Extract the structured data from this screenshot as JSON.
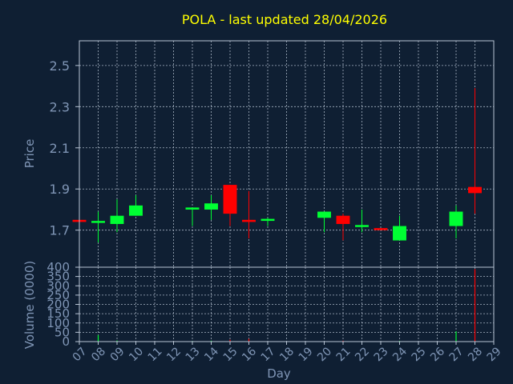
{
  "title": "POLA - last updated 28/04/2026",
  "price_axis_label": "Price",
  "volume_axis_label": "Volume (0000)",
  "x_axis_label": "Day",
  "colors": {
    "background": "#0f1f33",
    "up": "#00ff33",
    "down": "#ff0000",
    "text": "#7f95b5",
    "title": "#ffff00",
    "grid": "#b8c4d4"
  },
  "chart_data": [
    {
      "type": "candlestick",
      "title": "POLA - last updated 28/04/2026",
      "ylabel": "Price",
      "xlabel": "Day",
      "ylim": [
        1.52,
        2.62
      ],
      "yticks": [
        "1.7",
        "1.9",
        "2.1",
        "2.3",
        "2.5"
      ],
      "xticks": [
        "07",
        "08",
        "09",
        "10",
        "11",
        "12",
        "13",
        "14",
        "15",
        "16",
        "17",
        "18",
        "19",
        "20",
        "21",
        "22",
        "23",
        "24",
        "25",
        "26",
        "27",
        "28",
        "29"
      ],
      "grid": true,
      "candles": [
        {
          "day": "07",
          "open": 1.75,
          "high": 1.75,
          "low": 1.74,
          "close": 1.74
        },
        {
          "day": "08",
          "open": 1.74,
          "high": 1.79,
          "low": 1.64,
          "close": 1.74
        },
        {
          "day": "09",
          "open": 1.73,
          "high": 1.85,
          "low": 1.69,
          "close": 1.77
        },
        {
          "day": "10",
          "open": 1.77,
          "high": 1.87,
          "low": 1.77,
          "close": 1.82
        },
        {
          "day": "13",
          "open": 1.8,
          "high": 1.81,
          "low": 1.72,
          "close": 1.81
        },
        {
          "day": "14",
          "open": 1.8,
          "high": 1.87,
          "low": 1.75,
          "close": 1.83
        },
        {
          "day": "15",
          "open": 1.92,
          "high": 1.92,
          "low": 1.72,
          "close": 1.78
        },
        {
          "day": "16",
          "open": 1.75,
          "high": 1.89,
          "low": 1.66,
          "close": 1.74
        },
        {
          "day": "17",
          "open": 1.75,
          "high": 1.76,
          "low": 1.72,
          "close": 1.75
        },
        {
          "day": "20",
          "open": 1.76,
          "high": 1.79,
          "low": 1.69,
          "close": 1.79
        },
        {
          "day": "21",
          "open": 1.77,
          "high": 1.78,
          "low": 1.65,
          "close": 1.73
        },
        {
          "day": "22",
          "open": 1.72,
          "high": 1.8,
          "low": 1.69,
          "close": 1.72
        },
        {
          "day": "23",
          "open": 1.71,
          "high": 1.71,
          "low": 1.7,
          "close": 1.7
        },
        {
          "day": "24",
          "open": 1.65,
          "high": 1.77,
          "low": 1.65,
          "close": 1.72
        },
        {
          "day": "27",
          "open": 1.72,
          "high": 1.82,
          "low": 1.66,
          "close": 1.79
        },
        {
          "day": "28",
          "open": 1.91,
          "high": 2.39,
          "low": 1.78,
          "close": 1.88
        }
      ]
    },
    {
      "type": "bar",
      "ylabel": "Volume (0000)",
      "xlabel": "Day",
      "ylim": [
        0,
        400
      ],
      "yticks": [
        "0",
        "50",
        "100",
        "150",
        "200",
        "250",
        "300",
        "350",
        "400"
      ],
      "grid": true,
      "bars": [
        {
          "day": "08",
          "value": 35,
          "color": "#00ff33"
        },
        {
          "day": "09",
          "value": 6,
          "color": "#00ff33"
        },
        {
          "day": "13",
          "value": 3,
          "color": "#00ff33"
        },
        {
          "day": "14",
          "value": 5,
          "color": "#00ff33"
        },
        {
          "day": "15",
          "value": 10,
          "color": "#ff0000"
        },
        {
          "day": "16",
          "value": 15,
          "color": "#ff0000"
        },
        {
          "day": "21",
          "value": 5,
          "color": "#ff0000"
        },
        {
          "day": "24",
          "value": 4,
          "color": "#00ff33"
        },
        {
          "day": "27",
          "value": 55,
          "color": "#00ff33"
        },
        {
          "day": "28",
          "value": 390,
          "color": "#ff0000"
        }
      ]
    }
  ]
}
